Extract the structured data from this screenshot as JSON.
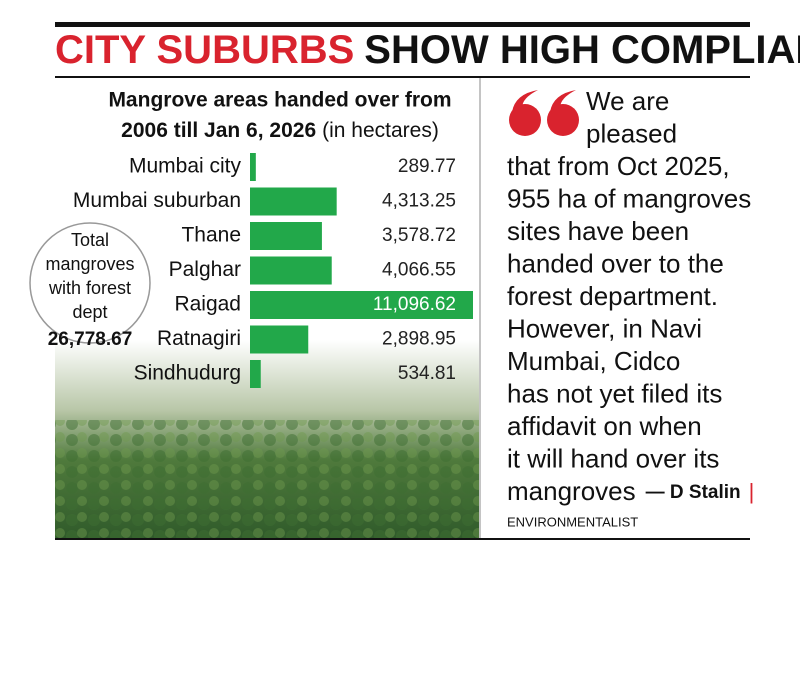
{
  "header": {
    "title_red": "CITY SUBURBS",
    "title_black": "SHOW HIGH COMPLIANCE"
  },
  "chart_data": {
    "type": "bar",
    "orientation": "horizontal",
    "title_lines": [
      "Mangrove areas handed over from",
      "2006 till Jan 6, 2026"
    ],
    "subtitle": "(in hectares)",
    "categories": [
      "Mumbai city",
      "Mumbai suburban",
      "Thane",
      "Palghar",
      "Raigad",
      "Ratnagiri",
      "Sindhudurg"
    ],
    "values": [
      289.77,
      4313.25,
      3578.72,
      4066.55,
      11096.62,
      2898.95,
      534.81
    ],
    "value_labels": [
      "289.77",
      "4,313.25",
      "3,578.72",
      "4,066.55",
      "11,096.62",
      "2,898.95",
      "534.81"
    ],
    "color": "#22a84a",
    "annotation": {
      "lines": [
        "Total",
        "mangroves",
        "with forest",
        "dept"
      ],
      "value": "26,778.67"
    }
  },
  "quote": {
    "lines": [
      "We are",
      "pleased",
      "that from Oct 2025,",
      "955 ha of mangroves",
      "sites have been",
      "handed over to the",
      "forest department.",
      "However, in Navi",
      "Mumbai, Cidco",
      "has not yet filed its",
      "affidavit on when",
      "it will hand over its",
      "mangroves"
    ],
    "author": "— D Stalin",
    "separator": "|",
    "role": "ENVIRONMENTALIST"
  }
}
